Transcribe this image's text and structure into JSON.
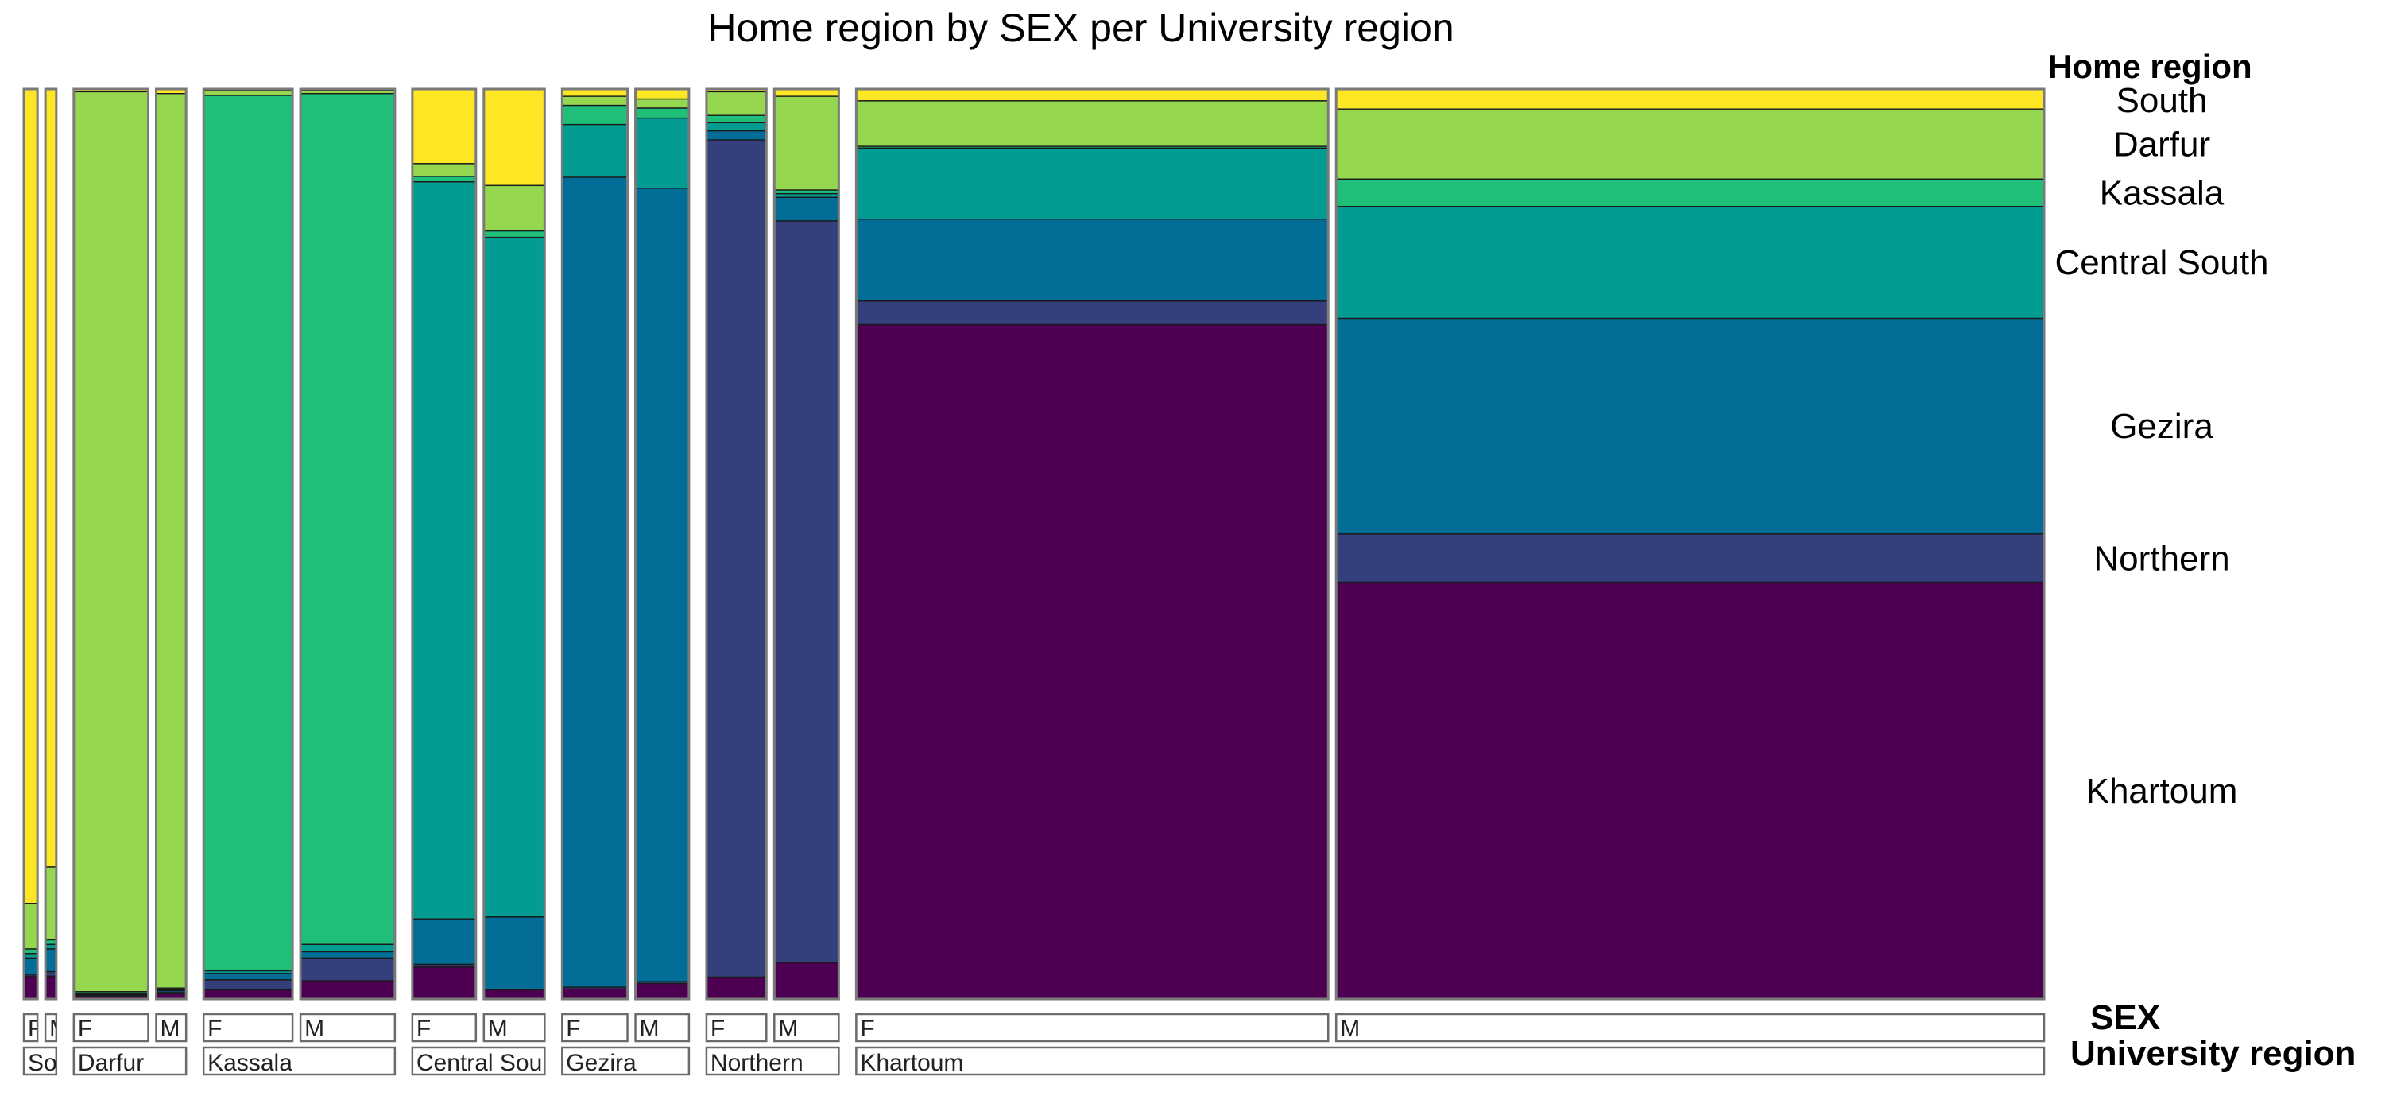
{
  "chart_data": {
    "type": "mosaic",
    "title": "Home region by SEX per University region",
    "legend_title": "Home region",
    "legend_position": "right",
    "sex_axis_label": "SEX",
    "region_axis_label": "University  region",
    "home_regions": [
      "South",
      "Darfur",
      "Kassala",
      "Central South",
      "Gezira",
      "Northern",
      "Khartoum"
    ],
    "colors": {
      "South": "#FDE725",
      "Darfur": "#95D84F",
      "Kassala": "#1FBF7A",
      "Central South": "#029C93",
      "Gezira": "#026D96",
      "Northern": "#353F7C",
      "Khartoum": "#4D0052"
    },
    "university_regions": [
      {
        "name": "South",
        "strip_label": "So",
        "columns": [
          {
            "sex": "F",
            "strip_label": "F",
            "count": 1.5,
            "shares": [
              0.895,
              0.05,
              0.005,
              0.005,
              0.018,
              0.002,
              0.025
            ]
          },
          {
            "sex": "M",
            "strip_label": "M",
            "count": 1.2,
            "shares": [
              0.855,
              0.08,
              0.005,
              0.005,
              0.025,
              0.005,
              0.025
            ]
          }
        ]
      },
      {
        "name": "Darfur",
        "strip_label": "Darfur",
        "columns": [
          {
            "sex": "F",
            "strip_label": "F",
            "count": 8.2,
            "shares": [
              0.003,
              0.989,
              0.002,
              0.001,
              0.001,
              0.001,
              0.003
            ]
          },
          {
            "sex": "M",
            "strip_label": "M",
            "count": 3.3,
            "shares": [
              0.005,
              0.983,
              0.002,
              0.001,
              0.002,
              0.001,
              0.006
            ]
          }
        ]
      },
      {
        "name": "Kassala",
        "strip_label": "Kassala",
        "columns": [
          {
            "sex": "F",
            "strip_label": "F",
            "count": 9.8,
            "shares": [
              0.002,
              0.005,
              0.962,
              0.003,
              0.007,
              0.011,
              0.01
            ]
          },
          {
            "sex": "M",
            "strip_label": "M",
            "count": 10.4,
            "shares": [
              0.002,
              0.003,
              0.935,
              0.008,
              0.007,
              0.025,
              0.02
            ]
          }
        ]
      },
      {
        "name": "Central South",
        "strip_label": "Central Sou",
        "columns": [
          {
            "sex": "F",
            "strip_label": "F",
            "count": 7.0,
            "shares": [
              0.082,
              0.014,
              0.006,
              0.81,
              0.05,
              0.003,
              0.035
            ]
          },
          {
            "sex": "M",
            "strip_label": "M",
            "count": 6.7,
            "shares": [
              0.106,
              0.05,
              0.007,
              0.747,
              0.08,
              0.0,
              0.01
            ]
          }
        ]
      },
      {
        "name": "Gezira",
        "strip_label": "Gezira",
        "columns": [
          {
            "sex": "F",
            "strip_label": "F",
            "count": 7.2,
            "shares": [
              0.008,
              0.01,
              0.021,
              0.058,
              0.89,
              0.002,
              0.011
            ]
          },
          {
            "sex": "M",
            "strip_label": "M",
            "count": 5.9,
            "shares": [
              0.011,
              0.01,
              0.011,
              0.077,
              0.872,
              0.002,
              0.017
            ]
          }
        ]
      },
      {
        "name": "Northern",
        "strip_label": "Northern",
        "columns": [
          {
            "sex": "F",
            "strip_label": "F",
            "count": 6.6,
            "shares": [
              0.003,
              0.026,
              0.008,
              0.009,
              0.01,
              0.92,
              0.024
            ]
          },
          {
            "sex": "M",
            "strip_label": "M",
            "count": 7.1,
            "shares": [
              0.008,
              0.103,
              0.004,
              0.004,
              0.026,
              0.815,
              0.04
            ]
          }
        ]
      },
      {
        "name": "Khartoum",
        "strip_label": "Khartoum",
        "columns": [
          {
            "sex": "F",
            "strip_label": "F",
            "count": 52.0,
            "shares": [
              0.013,
              0.05,
              0.002,
              0.078,
              0.09,
              0.026,
              0.741
            ]
          },
          {
            "sex": "M",
            "strip_label": "M",
            "count": 78.0,
            "shares": [
              0.022,
              0.077,
              0.03,
              0.123,
              0.237,
              0.053,
              0.458
            ]
          }
        ]
      }
    ]
  }
}
